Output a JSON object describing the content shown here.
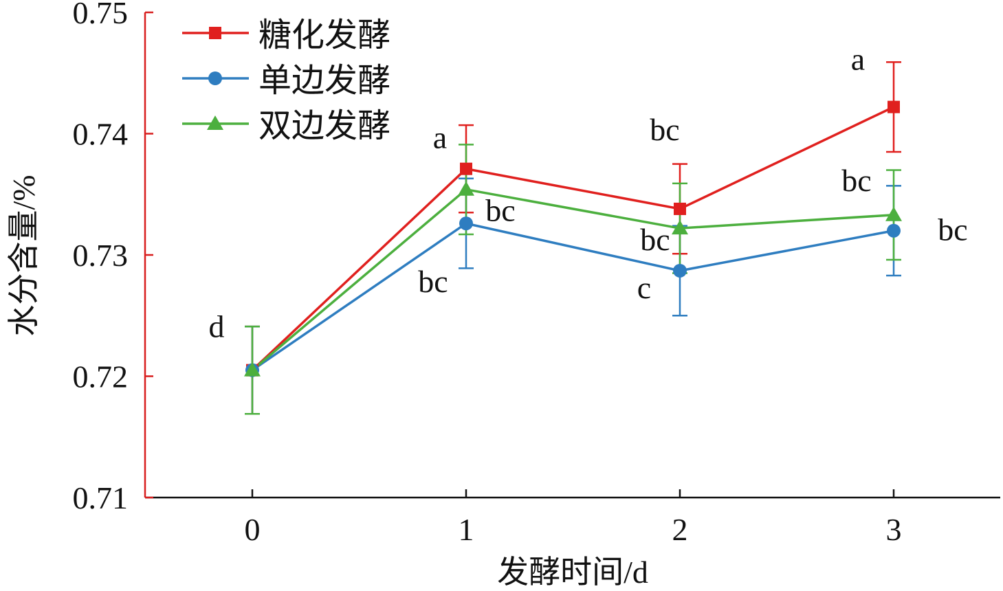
{
  "chart_data": {
    "type": "line",
    "title": "",
    "xlabel": "发酵时间/d",
    "ylabel": "水分含量/%",
    "x": [
      0,
      1,
      2,
      3
    ],
    "x_tick_labels": [
      "0",
      "1",
      "2",
      "3"
    ],
    "ylim": [
      0.71,
      0.75
    ],
    "y_ticks": [
      0.71,
      0.72,
      0.73,
      0.74,
      0.75
    ],
    "y_tick_labels": [
      "0.71",
      "0.72",
      "0.73",
      "0.74",
      "0.75"
    ],
    "grid": false,
    "legend_position": "top-left",
    "series": [
      {
        "name": "糖化发酵",
        "color": "#e0201e",
        "marker": "square",
        "values": [
          0.7205,
          0.7371,
          0.7338,
          0.7422
        ],
        "errors": [
          0.0036,
          0.0036,
          0.0037,
          0.0037
        ],
        "annotations": [
          "d",
          "a",
          "bc",
          "a"
        ]
      },
      {
        "name": "单边发酵",
        "color": "#2e7dc0",
        "marker": "circle",
        "values": [
          0.7205,
          0.7326,
          0.7287,
          0.732
        ],
        "errors": [
          0.0036,
          0.0037,
          0.0037,
          0.0037
        ],
        "annotations": [
          "",
          "bc",
          "c",
          "bc"
        ]
      },
      {
        "name": "双边发酵",
        "color": "#4caf3e",
        "marker": "triangle",
        "values": [
          0.7205,
          0.7354,
          0.7322,
          0.7333
        ],
        "errors": [
          0.0036,
          0.0037,
          0.0037,
          0.0037
        ],
        "annotations": [
          "",
          "bc",
          "bc",
          "bc"
        ]
      }
    ]
  }
}
